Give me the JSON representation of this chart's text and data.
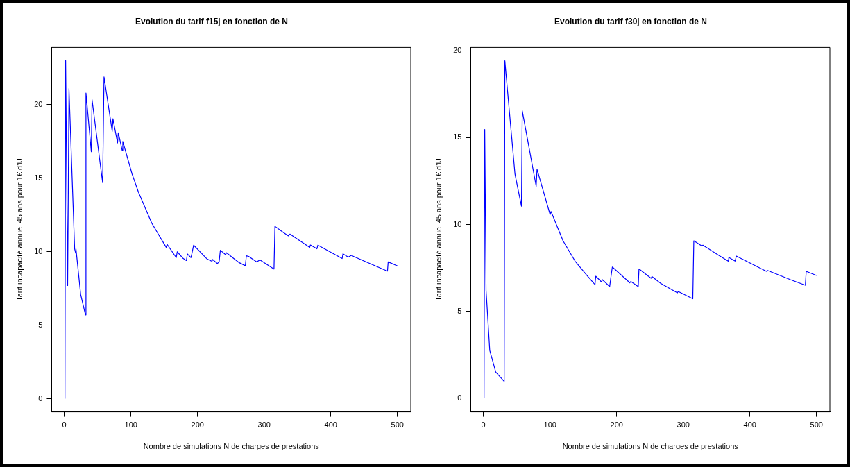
{
  "chart_data": [
    {
      "type": "line",
      "title": "Evolution du tarif f15j en fonction de N",
      "xlabel": "Nombre de simulations N de charges de prestations",
      "ylabel": "Tarif incapacité annuel 45 ans pour 1€ d'IJ",
      "marker": "none",
      "line_style": "solid",
      "xlim": [
        -19,
        520
      ],
      "ylim": [
        -0.9,
        23.9
      ],
      "xticks": [
        0,
        100,
        200,
        300,
        400,
        500
      ],
      "yticks": [
        0,
        5,
        10,
        15,
        20
      ],
      "x": [
        1,
        2,
        5,
        7,
        15.5,
        17,
        17.5,
        24.5,
        31.8,
        32.5,
        40.5,
        41.6,
        57.5,
        59.6,
        71.9,
        73,
        79.9,
        81,
        86.8,
        87.8,
        101.6,
        111.3,
        131.2,
        152.9,
        154.3,
        168,
        169.5,
        178.2,
        183.2,
        184.7,
        190.1,
        191.6,
        194.1,
        214.4,
        221.6,
        222.6,
        229.6,
        232.3,
        234.2,
        242.1,
        243.5,
        252.6,
        262.7,
        271.7,
        273.2,
        276.7,
        288.8,
        293.5,
        314.7,
        316.1,
        328.4,
        336.4,
        338.6,
        368.3,
        369.4,
        379.1,
        380.6,
        417,
        418.2,
        426.1,
        430.8,
        485,
        486.1,
        500
      ],
      "series": [
        {
          "color": "#0000ff",
          "values": [
            0,
            23.0,
            7.7,
            21.1,
            10.2,
            9.9,
            10.2,
            7.1,
            5.7,
            20.8,
            16.8,
            20.35,
            14.7,
            21.9,
            18.2,
            19.05,
            17.4,
            18.1,
            16.9,
            17.5,
            15.3,
            14.05,
            11.95,
            10.3,
            10.5,
            9.6,
            10.0,
            9.55,
            9.4,
            9.85,
            9.6,
            9.9,
            10.45,
            9.5,
            9.35,
            9.47,
            9.2,
            9.3,
            10.1,
            9.8,
            9.93,
            9.6,
            9.25,
            9.05,
            9.72,
            9.68,
            9.3,
            9.45,
            8.82,
            11.73,
            11.32,
            11.08,
            11.2,
            10.3,
            10.46,
            10.2,
            10.45,
            9.54,
            9.86,
            9.63,
            9.75,
            8.68,
            9.31,
            9.03
          ]
        }
      ]
    },
    {
      "type": "line",
      "title": "Evolution du tarif f30j en fonction de N",
      "xlabel": "Nombre de simulations N de charges de prestations",
      "ylabel": "Tarif incapacité annuel 45 ans pour 1€ d'IJ",
      "marker": "none",
      "line_style": "solid",
      "xlim": [
        -19,
        520
      ],
      "ylim": [
        -0.8,
        20.2
      ],
      "xticks": [
        0,
        100,
        200,
        300,
        400,
        500
      ],
      "yticks": [
        0,
        5,
        10,
        15,
        20
      ],
      "x": [
        1,
        2,
        4,
        9.5,
        18.5,
        31.2,
        32.2,
        47.4,
        57.1,
        58.3,
        79.2,
        80.5,
        100.1,
        101.5,
        119.5,
        137.6,
        155.6,
        167.5,
        168.6,
        177.2,
        178.7,
        189.5,
        191,
        193.5,
        219.8,
        221.2,
        232.4,
        233.5,
        251.6,
        253,
        266,
        291.2,
        292.3,
        314.3,
        315.8,
        328,
        329.5,
        352.5,
        367.7,
        368.4,
        377.8,
        379.6,
        424.7,
        426.5,
        460.8,
        483.2,
        484.5,
        500
      ],
      "series": [
        {
          "color": "#0000ff",
          "values": [
            0,
            15.47,
            6.2,
            2.75,
            1.5,
            0.96,
            19.43,
            12.9,
            11.05,
            16.55,
            12.2,
            13.18,
            10.57,
            10.75,
            9.06,
            7.89,
            7.06,
            6.54,
            7.02,
            6.69,
            6.82,
            6.42,
            6.86,
            7.55,
            6.64,
            6.72,
            6.42,
            7.44,
            6.9,
            7.0,
            6.61,
            6.06,
            6.14,
            5.72,
            9.06,
            8.76,
            8.81,
            8.24,
            7.88,
            8.1,
            7.89,
            8.18,
            7.3,
            7.35,
            6.82,
            6.5,
            7.3,
            7.06
          ]
        }
      ]
    }
  ]
}
